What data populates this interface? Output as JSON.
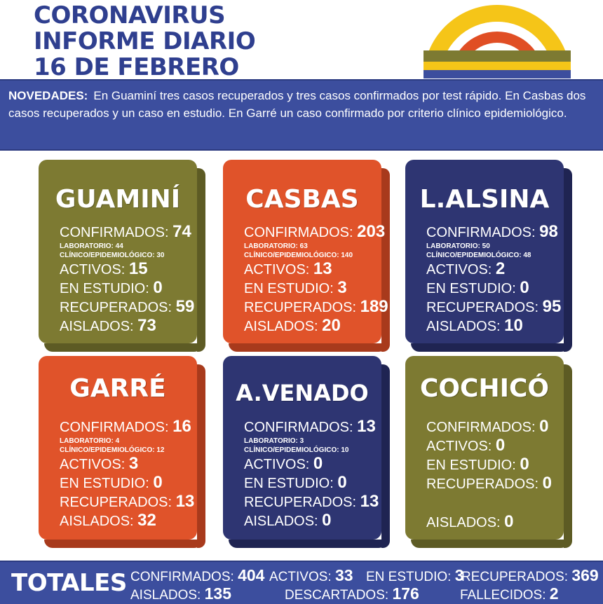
{
  "header": {
    "line1": "CORONAVIRUS",
    "line2": "INFORME DIARIO",
    "line3": "16 DE FEBRERO"
  },
  "colors": {
    "title": "#2f3f8f",
    "band": "#3c4e9e",
    "olive": "#7d7a32",
    "orange": "#e0532a",
    "navy": "#2e3572"
  },
  "news": {
    "label": "NOVEDADES:",
    "text": "En Guaminí tres casos recuperados y tres casos confirmados por test rápido. En Casbas dos casos recuperados y un caso en estudio. En Garré un caso confirmado por criterio clínico epidemiológico."
  },
  "labels": {
    "confirmados": "CONFIRMADOS:",
    "laboratorio": "LABORATORIO:",
    "clinico": "CLÍNICO/EPIDEMIOLÓGICO:",
    "activos": "ACTIVOS:",
    "estudio": "EN ESTUDIO:",
    "recuperados": "RECUPERADOS:",
    "aislados": "AISLADOS:"
  },
  "cards": [
    {
      "name": "GUAMINÍ",
      "confirmados": "74",
      "laboratorio": "44",
      "clinico": "30",
      "activos": "15",
      "estudio": "0",
      "recuperados": "59",
      "aislados": "73"
    },
    {
      "name": "CASBAS",
      "confirmados": "203",
      "laboratorio": "63",
      "clinico": "140",
      "activos": "13",
      "estudio": "3",
      "recuperados": "189",
      "aislados": "20"
    },
    {
      "name": "L.ALSINA",
      "confirmados": "98",
      "laboratorio": "50",
      "clinico": "48",
      "activos": "2",
      "estudio": "0",
      "recuperados": "95",
      "aislados": "10"
    },
    {
      "name": "GARRÉ",
      "confirmados": "16",
      "laboratorio": "4",
      "clinico": "12",
      "activos": "3",
      "estudio": "0",
      "recuperados": "13",
      "aislados": "32"
    },
    {
      "name": "A.VENADO",
      "confirmados": "13",
      "laboratorio": "3",
      "clinico": "10",
      "activos": "0",
      "estudio": "0",
      "recuperados": "13",
      "aislados": "0"
    },
    {
      "name": "COCHICÓ",
      "confirmados": "0",
      "activos": "0",
      "estudio": "0",
      "recuperados": "0",
      "aislados": "0"
    }
  ],
  "totals": {
    "label": "TOTALES",
    "confirmados_label": "CONFIRMADOS:",
    "confirmados": "404",
    "activos_label": "ACTIVOS:",
    "activos": "33",
    "estudio_label": "EN ESTUDIO:",
    "estudio": "3",
    "recuperados_label": "RECUPERADOS:",
    "recuperados": "369",
    "aislados_label": "AISLADOS:",
    "aislados": "135",
    "descartados_label": "DESCARTADOS:",
    "descartados": "176",
    "fallecidos_label": "FALLECIDOS:",
    "fallecidos": "2"
  }
}
